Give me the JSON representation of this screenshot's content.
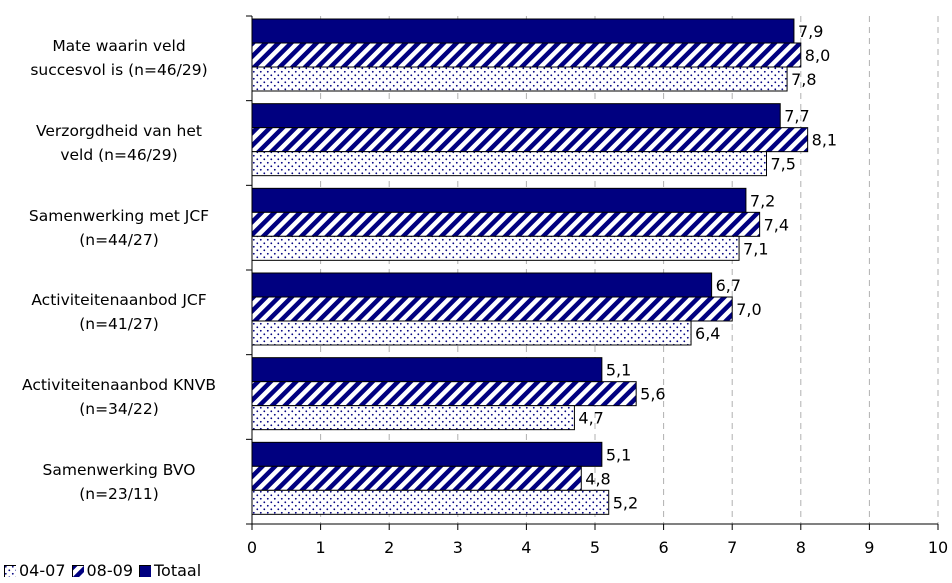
{
  "chart_data": {
    "type": "bar",
    "orientation": "horizontal",
    "categories": [
      [
        "Mate waarin veld",
        "succesvol is (n=46/29)"
      ],
      [
        "Verzorgdheid van het",
        "veld (n=46/29)"
      ],
      [
        "Samenwerking met JCF",
        "(n=44/27)"
      ],
      [
        "Activiteitenaanbod JCF",
        "(n=41/27)"
      ],
      [
        "Activiteitenaanbod KNVB",
        "(n=34/22)"
      ],
      [
        "Samenwerking BVO",
        "(n=23/11)"
      ]
    ],
    "series": [
      {
        "name": "Totaal",
        "color": "#000080",
        "pattern": "solid",
        "values": [
          7.9,
          7.7,
          7.2,
          6.7,
          5.1,
          5.1
        ],
        "labels": [
          "7,9",
          "7,7",
          "7,2",
          "6,7",
          "5,1",
          "5,1"
        ]
      },
      {
        "name": "08-09",
        "color": "#000080",
        "pattern": "diagonal-stripes",
        "values": [
          8.0,
          8.1,
          7.4,
          7.0,
          5.6,
          4.8
        ],
        "labels": [
          "8,0",
          "8,1",
          "7,4",
          "7,0",
          "5,6",
          "4,8"
        ]
      },
      {
        "name": "04-07",
        "color": "#000080",
        "pattern": "dotted",
        "values": [
          7.8,
          7.5,
          7.1,
          6.4,
          4.7,
          5.2
        ],
        "labels": [
          "7,8",
          "7,5",
          "7,1",
          "6,4",
          "4,7",
          "5,2"
        ]
      }
    ],
    "xlim": [
      0,
      10
    ],
    "xticks": [
      "0",
      "1",
      "2",
      "3",
      "4",
      "5",
      "6",
      "7",
      "8",
      "9",
      "10"
    ],
    "grid": "vertical-dashed",
    "legend": {
      "placement": "bottom-left",
      "items": [
        {
          "name": "04-07",
          "pattern": "dotted"
        },
        {
          "name": "08-09",
          "pattern": "diagonal-stripes"
        },
        {
          "name": "Totaal",
          "pattern": "solid"
        }
      ]
    }
  }
}
